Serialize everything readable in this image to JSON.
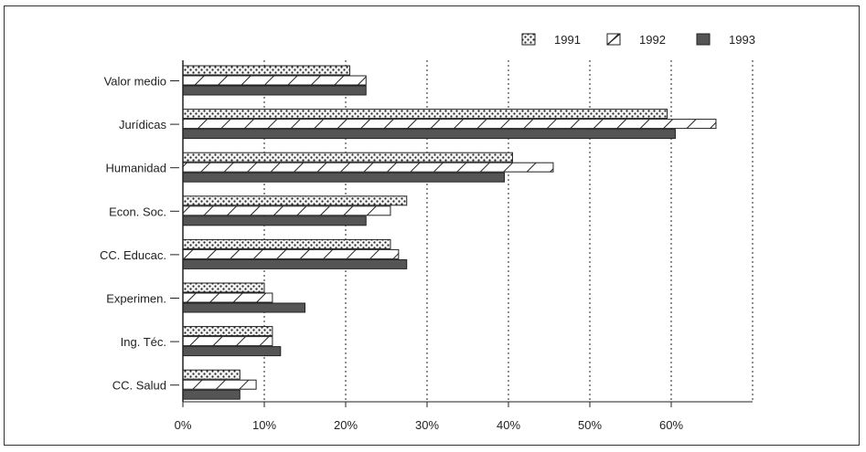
{
  "chart_data": {
    "type": "bar",
    "orientation": "horizontal",
    "title": "",
    "xlabel": "",
    "ylabel": "",
    "xlim": [
      0,
      70
    ],
    "x_ticks": [
      "0%",
      "10%",
      "20%",
      "30%",
      "40%",
      "50%",
      "60%"
    ],
    "grid": "vertical dotted",
    "legend_position": "top-right",
    "categories": [
      "Valor medio",
      "Jurídicas",
      "Humanidad",
      "Econ. Soc.",
      "CC. Educac.",
      "Experimen.",
      "Ing. Téc.",
      "CC. Salud"
    ],
    "series": [
      {
        "name": "1991",
        "pattern": "dots",
        "color": "#f2f2f2",
        "values": [
          20.5,
          59.5,
          40.5,
          27.5,
          25.5,
          10,
          11,
          7
        ]
      },
      {
        "name": "1992",
        "pattern": "hatch",
        "color": "#ffffff",
        "values": [
          22.5,
          65.5,
          45.5,
          25.5,
          26.5,
          11,
          11,
          9
        ]
      },
      {
        "name": "1993",
        "pattern": "solid",
        "color": "#555555",
        "values": [
          22.5,
          60.5,
          39.5,
          22.5,
          27.5,
          15,
          12,
          7
        ]
      }
    ]
  }
}
